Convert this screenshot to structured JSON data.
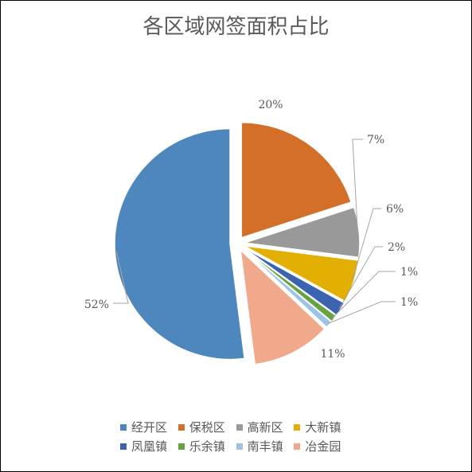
{
  "chart_data": {
    "type": "pie",
    "title": "各区域网签面积占比",
    "slices": [
      {
        "name": "经开区",
        "value": 52,
        "label": "52%",
        "color": "#4e86be",
        "exploded": true
      },
      {
        "name": "保税区",
        "value": 20,
        "label": "20%",
        "color": "#d46f2a",
        "exploded": true
      },
      {
        "name": "高新区",
        "value": 7,
        "label": "7%",
        "color": "#999999",
        "exploded": true
      },
      {
        "name": "大新镇",
        "value": 6,
        "label": "6%",
        "color": "#e3af03",
        "exploded": true
      },
      {
        "name": "凤凰镇",
        "value": 2,
        "label": "2%",
        "color": "#3c63b0",
        "exploded": true
      },
      {
        "name": "乐余镇",
        "value": 1,
        "label": "1%",
        "color": "#67a342",
        "exploded": true
      },
      {
        "name": "南丰镇",
        "value": 1,
        "label": "1%",
        "color": "#9dc3e6",
        "exploded": true
      },
      {
        "name": "冶金园",
        "value": 11,
        "label": "11%",
        "color": "#f1a98b",
        "exploded": true
      }
    ],
    "legend_position": "bottom",
    "label_style": "outside with leader lines"
  }
}
